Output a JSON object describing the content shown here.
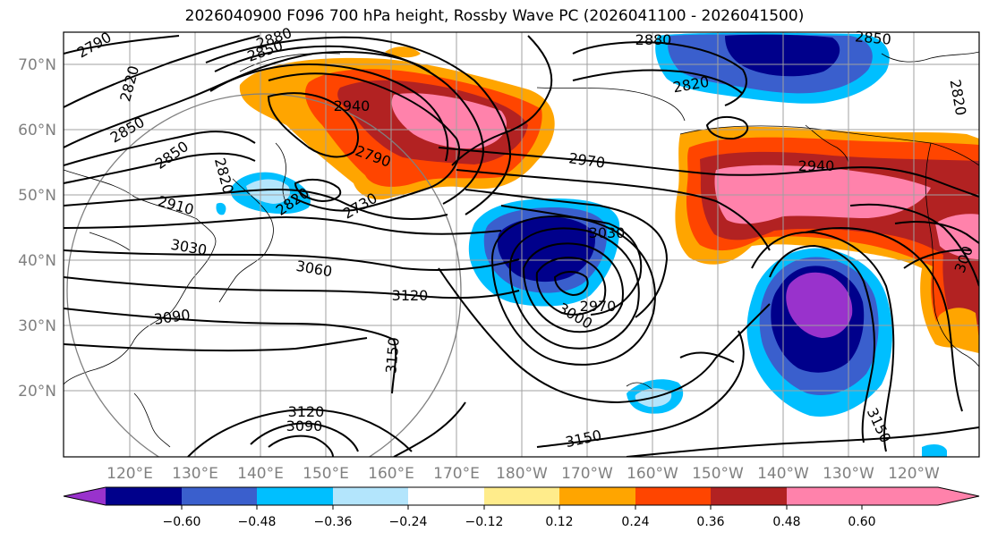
{
  "title": "2026040900 F096 700 hPa height, Rossby Wave PC (2026041100 - 2026041500)",
  "map": {
    "lat_labels": [
      "70°N",
      "60°N",
      "50°N",
      "40°N",
      "30°N",
      "20°N"
    ],
    "lon_labels": [
      "120°E",
      "130°E",
      "140°E",
      "150°E",
      "160°E",
      "170°E",
      "180°W",
      "170°W",
      "160°W",
      "150°W",
      "140°W",
      "130°W",
      "120°W"
    ],
    "contour_labels": [
      "2790",
      "2880",
      "2850",
      "2820",
      "2850",
      "2850",
      "2820",
      "2940",
      "2790",
      "2730",
      "2820",
      "2910",
      "3030",
      "3060",
      "3090",
      "3120",
      "3150",
      "3120",
      "3090",
      "2880",
      "2850",
      "2820",
      "2820",
      "2970",
      "2940",
      "3030",
      "2970",
      "3000",
      "3150",
      "3150",
      "300"
    ]
  },
  "colorbar": {
    "ticks": [
      "−0.60",
      "−0.48",
      "−0.36",
      "−0.24",
      "−0.12",
      "0.12",
      "0.24",
      "0.36",
      "0.48",
      "0.60"
    ],
    "colors": [
      "#9932cc",
      "#00008b",
      "#3a5fcd",
      "#00bfff",
      "#b3e5fc",
      "#ffffff",
      "#ffec8b",
      "#ffa500",
      "#ff4500",
      "#b22222",
      "#ff82ab"
    ]
  }
}
